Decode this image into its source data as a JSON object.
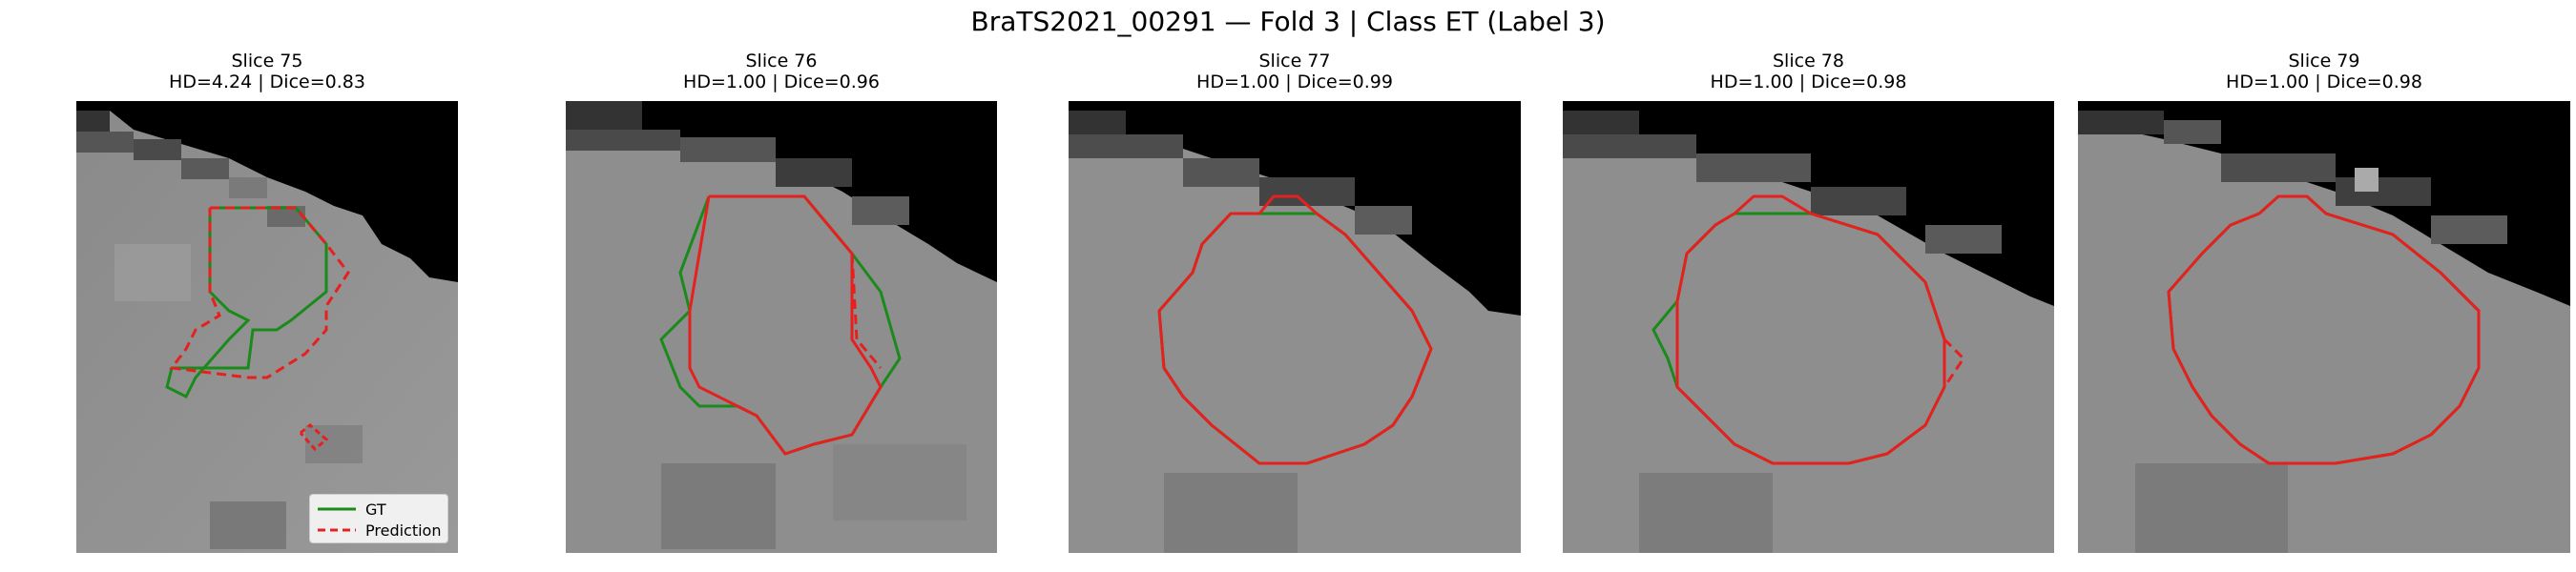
{
  "figure": {
    "title": "BraTS2021_00291 — Fold 3 | Class ET (Label 3)"
  },
  "panels": [
    {
      "slice": "Slice 75",
      "metrics": "HD=4.24 | Dice=0.83"
    },
    {
      "slice": "Slice 76",
      "metrics": "HD=1.00 | Dice=0.96"
    },
    {
      "slice": "Slice 77",
      "metrics": "HD=1.00 | Dice=0.99"
    },
    {
      "slice": "Slice 78",
      "metrics": "HD=1.00 | Dice=0.98"
    },
    {
      "slice": "Slice 79",
      "metrics": "HD=1.00 | Dice=0.98"
    }
  ],
  "legend": {
    "gt_label": "GT",
    "prediction_label": "Prediction"
  },
  "colors": {
    "gt": "#1a8a1a",
    "prediction": "#e6201f",
    "background_tissue": "#909090",
    "outside_brain": "#000000"
  }
}
